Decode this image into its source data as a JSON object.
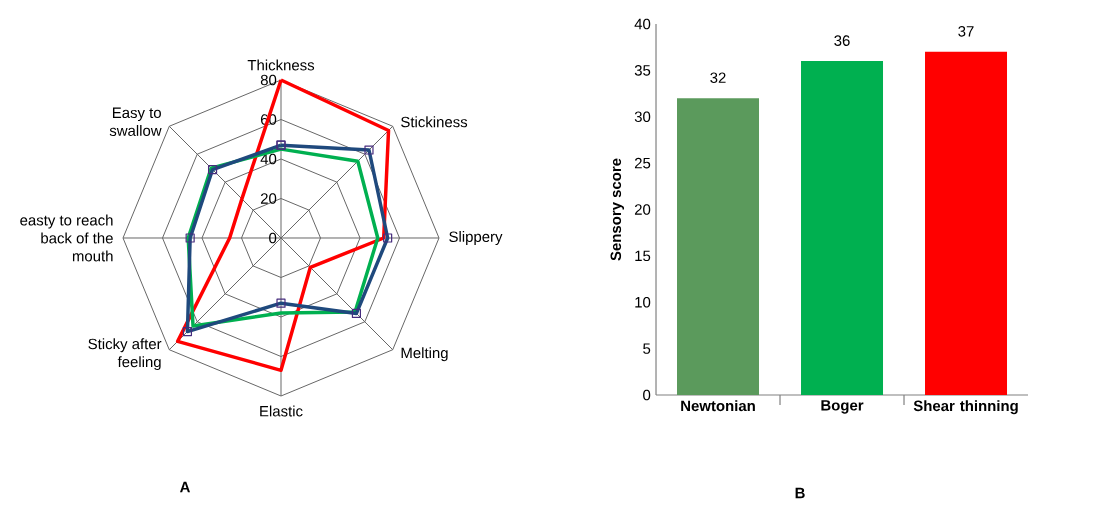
{
  "chart_data": [
    {
      "type": "radar",
      "categories": [
        "Thickness",
        "Stickiness",
        "Slippery",
        "Melting",
        "Elastic",
        "Sticky after feeling",
        "easty to reach back of the mouth",
        "Easy to swallow"
      ],
      "series": [
        {
          "color": "#ff0000",
          "values": [
            80,
            77,
            52,
            21,
            67,
            74,
            26,
            28
          ]
        },
        {
          "color": "#00b050",
          "values": [
            45,
            55,
            49,
            53,
            38,
            63,
            47,
            50
          ]
        },
        {
          "color": "#1f497d",
          "values": [
            47,
            63,
            54,
            54,
            33,
            67,
            46,
            49
          ],
          "marker": "square"
        }
      ],
      "ylim": [
        0,
        80
      ],
      "yticks": [
        0,
        20,
        40,
        60,
        80
      ],
      "grid": true,
      "annotations": [
        "A"
      ]
    },
    {
      "type": "bar",
      "categories": [
        "Newtonian",
        "Boger",
        "Shear thinning"
      ],
      "values": [
        32,
        36,
        37
      ],
      "colors": [
        "#5b9a5c",
        "#00b050",
        "#ff0000"
      ],
      "ylabel": "Sensory score",
      "ylim": [
        0,
        40
      ],
      "yticks": [
        0,
        5,
        10,
        15,
        20,
        25,
        30,
        35,
        40
      ],
      "data_labels": true,
      "grid": false,
      "annotations": [
        "B"
      ]
    }
  ]
}
